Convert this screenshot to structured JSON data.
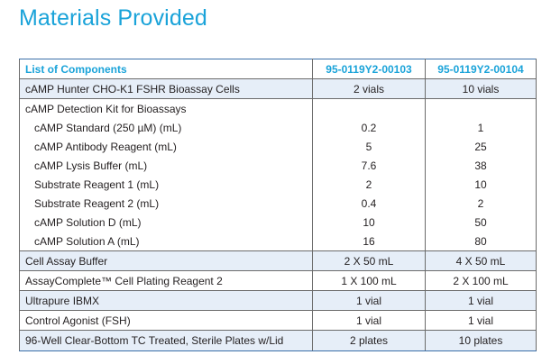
{
  "title": "Materials Provided",
  "table": {
    "headers": [
      "List of Components",
      "95-0119Y2-00103",
      "95-0119Y2-00104"
    ],
    "rows": [
      {
        "name": "cAMP Hunter CHO-K1 FSHR Bioassay Cells",
        "a": "2 vials",
        "b": "10 vials"
      },
      {
        "name": "cAMP Detection Kit for Bioassays",
        "a": "",
        "b": ""
      },
      {
        "name": "cAMP Standard (250 µM) (mL)",
        "a": "0.2",
        "b": "1"
      },
      {
        "name": "cAMP Antibody Reagent (mL)",
        "a": "5",
        "b": "25"
      },
      {
        "name": "cAMP Lysis Buffer (mL)",
        "a": "7.6",
        "b": "38"
      },
      {
        "name": "Substrate Reagent 1 (mL)",
        "a": "2",
        "b": "10"
      },
      {
        "name": "Substrate Reagent 2 (mL)",
        "a": "0.4",
        "b": "2"
      },
      {
        "name": "cAMP Solution D (mL)",
        "a": "10",
        "b": "50"
      },
      {
        "name": "cAMP Solution A (mL)",
        "a": "16",
        "b": "80"
      },
      {
        "name": "Cell Assay Buffer",
        "a": "2 X 50 mL",
        "b": "4 X 50 mL"
      },
      {
        "name": "AssayComplete™ Cell Plating Reagent 2",
        "a": "1 X 100 mL",
        "b": "2 X 100 mL"
      },
      {
        "name": "Ultrapure IBMX",
        "a": "1 vial",
        "b": "1 vial"
      },
      {
        "name": "Control Agonist (FSH)",
        "a": "1 vial",
        "b": "1 vial"
      },
      {
        "name": "96-Well Clear-Bottom TC Treated, Sterile Plates w/Lid",
        "a": "2 plates",
        "b": "10 plates"
      }
    ]
  },
  "colors": {
    "accent": "#1aa3d9",
    "row_shade": "#e6eef8",
    "rule": "#3a6fa8"
  }
}
